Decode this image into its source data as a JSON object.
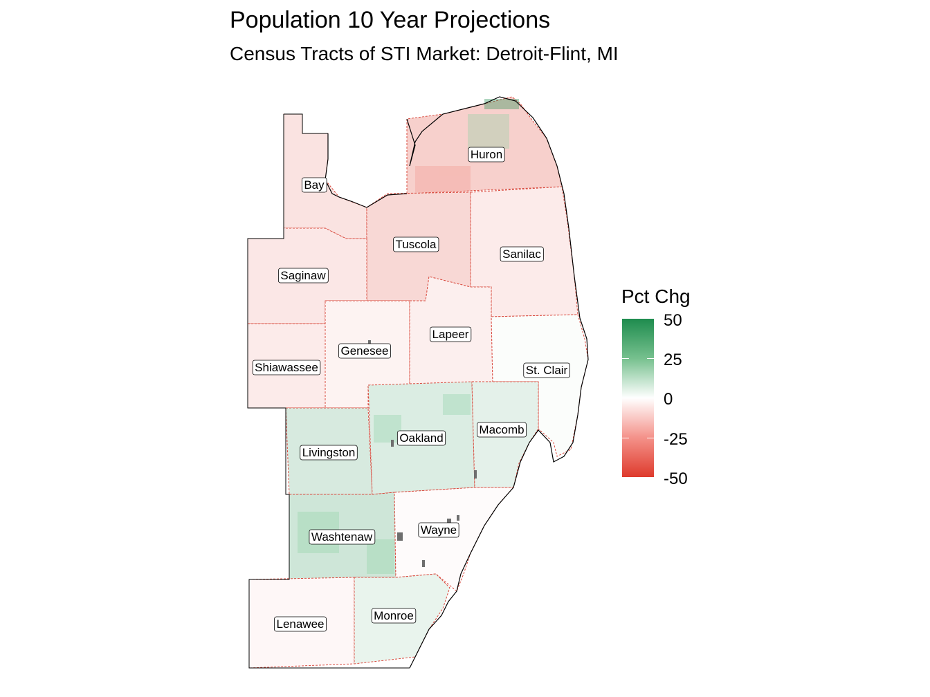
{
  "title": "Population 10 Year Projections",
  "subtitle": "Census Tracts of STI Market: Detroit-Flint, MI",
  "legend": {
    "title": "Pct Chg",
    "ticks": [
      "50",
      "25",
      "0",
      "-25",
      "-50"
    ],
    "range": [
      -50,
      50
    ],
    "colors": {
      "high": "#1e8c4e",
      "mid": "#ffffff",
      "low": "#de3a2c",
      "na": "#6e6e6e"
    }
  },
  "counties": [
    {
      "name": "Huron",
      "label": "Huron",
      "pct_chg": -12
    },
    {
      "name": "Bay",
      "label": "Bay",
      "pct_chg": -7
    },
    {
      "name": "Tuscola",
      "label": "Tuscola",
      "pct_chg": -10
    },
    {
      "name": "Sanilac",
      "label": "Sanilac",
      "pct_chg": -5
    },
    {
      "name": "Saginaw",
      "label": "Saginaw",
      "pct_chg": -6
    },
    {
      "name": "Genesee",
      "label": "Genesee",
      "pct_chg": -3
    },
    {
      "name": "Lapeer",
      "label": "Lapeer",
      "pct_chg": -4
    },
    {
      "name": "St. Clair",
      "label": "St. Clair",
      "pct_chg": 1
    },
    {
      "name": "Shiawassee",
      "label": "Shiawassee",
      "pct_chg": -5
    },
    {
      "name": "Livingston",
      "label": "Livingston",
      "pct_chg": 9
    },
    {
      "name": "Oakland",
      "label": "Oakland",
      "pct_chg": 8
    },
    {
      "name": "Macomb",
      "label": "Macomb",
      "pct_chg": 6
    },
    {
      "name": "Washtenaw",
      "label": "Washtenaw",
      "pct_chg": 11
    },
    {
      "name": "Wayne",
      "label": "Wayne",
      "pct_chg": -1
    },
    {
      "name": "Lenawee",
      "label": "Lenawee",
      "pct_chg": -2
    },
    {
      "name": "Monroe",
      "label": "Monroe",
      "pct_chg": 5
    }
  ]
}
